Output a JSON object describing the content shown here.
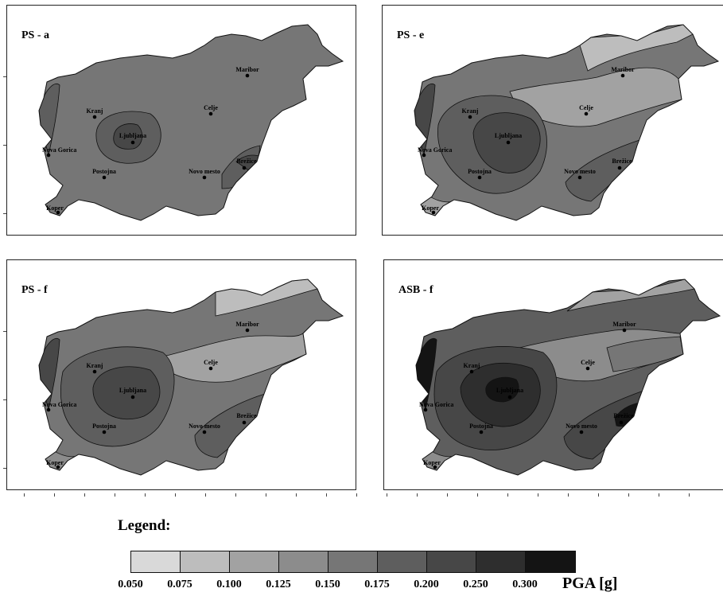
{
  "panels": [
    {
      "title": "PS - a",
      "scheme": "a"
    },
    {
      "title": "PS - e",
      "scheme": "e"
    },
    {
      "title": "PS - f",
      "scheme": "f"
    },
    {
      "title": "ASB - f",
      "scheme": "asb"
    }
  ],
  "cities": [
    "Maribor",
    "Celje",
    "Kranj",
    "Ljubljana",
    "Nova Gorica",
    "Postojna",
    "Novo mesto",
    "Brežice",
    "Koper"
  ],
  "legend": {
    "title": "Legend:",
    "unit": "PGA [g]",
    "ticks": [
      "0.050",
      "0.075",
      "0.100",
      "0.125",
      "0.150",
      "0.175",
      "0.200",
      "0.250",
      "0.300"
    ],
    "colors": [
      "#d9d9d9",
      "#bdbdbd",
      "#a2a2a2",
      "#8c8c8c",
      "#767676",
      "#5e5e5e",
      "#474747",
      "#2e2e2e",
      "#141414"
    ]
  }
}
